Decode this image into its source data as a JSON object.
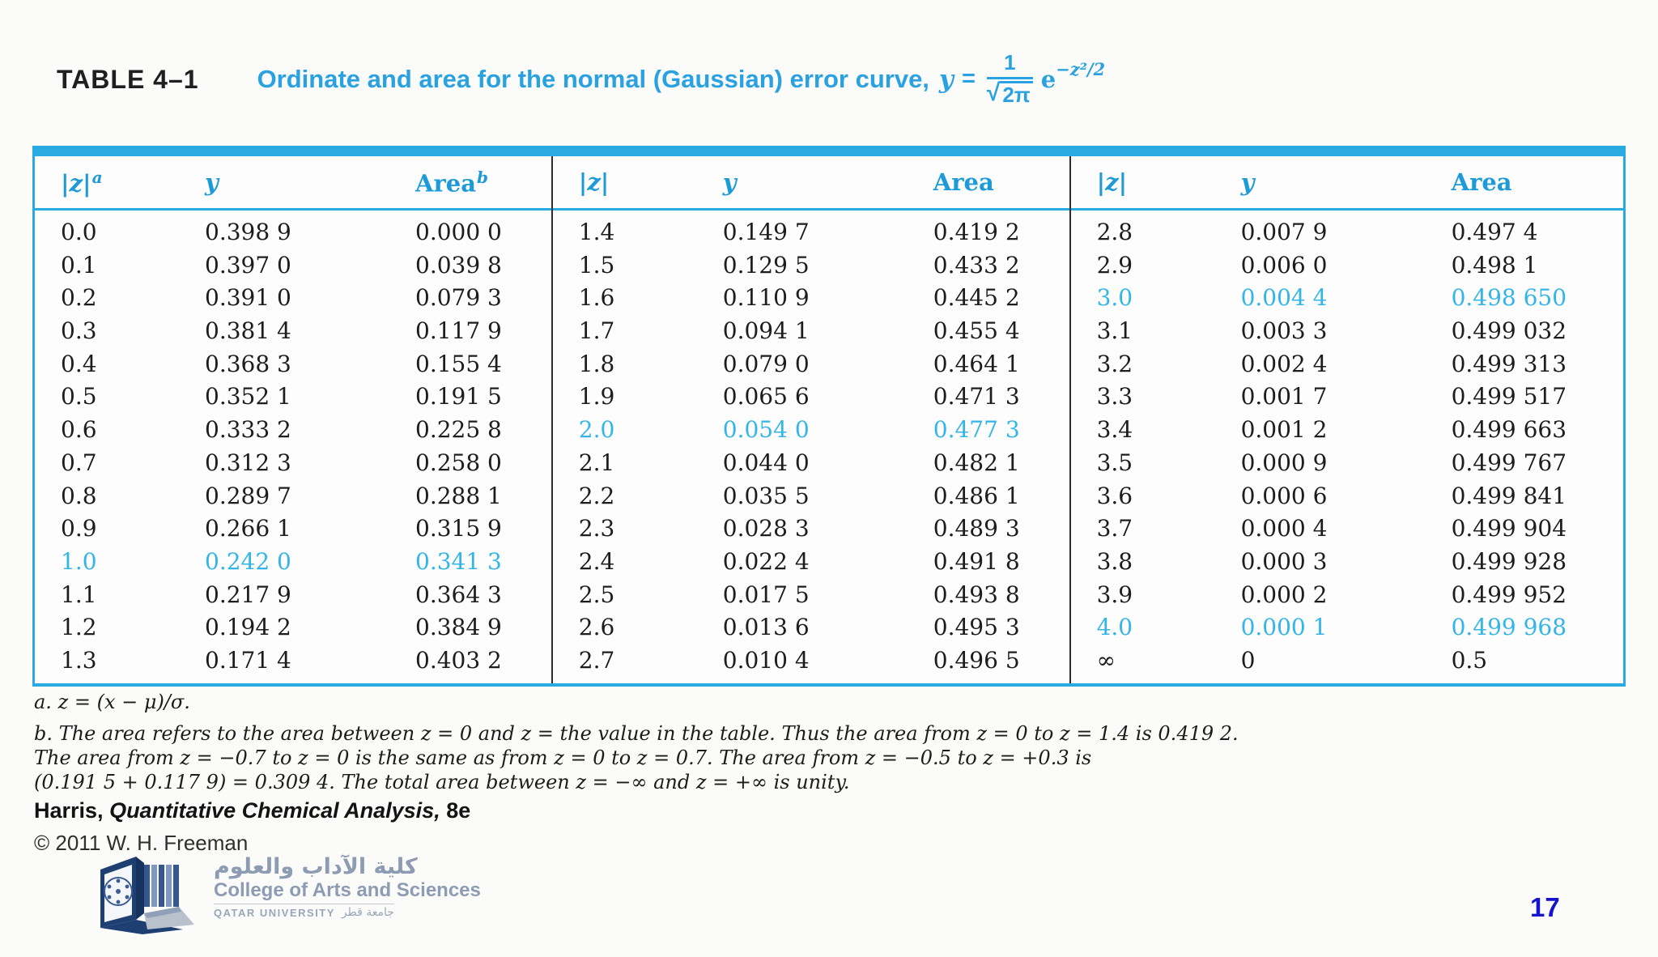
{
  "header": {
    "table_label": "TABLE 4–1",
    "title": "Ordinate and area for the normal (Gaussian) error curve,",
    "formula": {
      "lhs": "y",
      "eq": "=",
      "numerator": "1",
      "radical": "√",
      "denominator": "2π",
      "base": "e",
      "exponent": "−z²/2"
    }
  },
  "table": {
    "accent_color": "#29abe2",
    "header_text_color": "#1d9ad8",
    "highlight_text_color": "#33b5e8",
    "groups": [
      {
        "headers": [
          {
            "base": "|z|",
            "sup": "a",
            "italic": true
          },
          {
            "base": "y",
            "sup": "",
            "italic": true
          },
          {
            "base": "Area",
            "sup": "b",
            "italic": false
          }
        ],
        "rows": [
          {
            "z": "0.0",
            "y": "0.398 9",
            "area": "0.000 0",
            "h": false
          },
          {
            "z": "0.1",
            "y": "0.397 0",
            "area": "0.039 8",
            "h": false
          },
          {
            "z": "0.2",
            "y": "0.391 0",
            "area": "0.079 3",
            "h": false
          },
          {
            "z": "0.3",
            "y": "0.381 4",
            "area": "0.117 9",
            "h": false
          },
          {
            "z": "0.4",
            "y": "0.368 3",
            "area": "0.155 4",
            "h": false
          },
          {
            "z": "0.5",
            "y": "0.352 1",
            "area": "0.191 5",
            "h": false
          },
          {
            "z": "0.6",
            "y": "0.333 2",
            "area": "0.225 8",
            "h": false
          },
          {
            "z": "0.7",
            "y": "0.312 3",
            "area": "0.258 0",
            "h": false
          },
          {
            "z": "0.8",
            "y": "0.289 7",
            "area": "0.288 1",
            "h": false
          },
          {
            "z": "0.9",
            "y": "0.266 1",
            "area": "0.315 9",
            "h": false
          },
          {
            "z": "1.0",
            "y": "0.242 0",
            "area": "0.341 3",
            "h": true
          },
          {
            "z": "1.1",
            "y": "0.217 9",
            "area": "0.364 3",
            "h": false
          },
          {
            "z": "1.2",
            "y": "0.194 2",
            "area": "0.384 9",
            "h": false
          },
          {
            "z": "1.3",
            "y": "0.171 4",
            "area": "0.403 2",
            "h": false
          }
        ]
      },
      {
        "headers": [
          {
            "base": "|z|",
            "sup": "",
            "italic": true
          },
          {
            "base": "y",
            "sup": "",
            "italic": true
          },
          {
            "base": "Area",
            "sup": "",
            "italic": false
          }
        ],
        "rows": [
          {
            "z": "1.4",
            "y": "0.149 7",
            "area": "0.419 2",
            "h": false
          },
          {
            "z": "1.5",
            "y": "0.129 5",
            "area": "0.433 2",
            "h": false
          },
          {
            "z": "1.6",
            "y": "0.110 9",
            "area": "0.445 2",
            "h": false
          },
          {
            "z": "1.7",
            "y": "0.094 1",
            "area": "0.455 4",
            "h": false
          },
          {
            "z": "1.8",
            "y": "0.079 0",
            "area": "0.464 1",
            "h": false
          },
          {
            "z": "1.9",
            "y": "0.065 6",
            "area": "0.471 3",
            "h": false
          },
          {
            "z": "2.0",
            "y": "0.054 0",
            "area": "0.477 3",
            "h": true
          },
          {
            "z": "2.1",
            "y": "0.044 0",
            "area": "0.482 1",
            "h": false
          },
          {
            "z": "2.2",
            "y": "0.035 5",
            "area": "0.486 1",
            "h": false
          },
          {
            "z": "2.3",
            "y": "0.028 3",
            "area": "0.489 3",
            "h": false
          },
          {
            "z": "2.4",
            "y": "0.022 4",
            "area": "0.491 8",
            "h": false
          },
          {
            "z": "2.5",
            "y": "0.017 5",
            "area": "0.493 8",
            "h": false
          },
          {
            "z": "2.6",
            "y": "0.013 6",
            "area": "0.495 3",
            "h": false
          },
          {
            "z": "2.7",
            "y": "0.010 4",
            "area": "0.496 5",
            "h": false
          }
        ]
      },
      {
        "headers": [
          {
            "base": "|z|",
            "sup": "",
            "italic": true
          },
          {
            "base": "y",
            "sup": "",
            "italic": true
          },
          {
            "base": "Area",
            "sup": "",
            "italic": false
          }
        ],
        "rows": [
          {
            "z": "2.8",
            "y": "0.007 9",
            "area": "0.497 4",
            "h": false
          },
          {
            "z": "2.9",
            "y": "0.006 0",
            "area": "0.498 1",
            "h": false
          },
          {
            "z": "3.0",
            "y": "0.004 4",
            "area": "0.498 650",
            "h": true
          },
          {
            "z": "3.1",
            "y": "0.003 3",
            "area": "0.499 032",
            "h": false
          },
          {
            "z": "3.2",
            "y": "0.002 4",
            "area": "0.499 313",
            "h": false
          },
          {
            "z": "3.3",
            "y": "0.001 7",
            "area": "0.499 517",
            "h": false
          },
          {
            "z": "3.4",
            "y": "0.001 2",
            "area": "0.499 663",
            "h": false
          },
          {
            "z": "3.5",
            "y": "0.000 9",
            "area": "0.499 767",
            "h": false
          },
          {
            "z": "3.6",
            "y": "0.000 6",
            "area": "0.499 841",
            "h": false
          },
          {
            "z": "3.7",
            "y": "0.000 4",
            "area": "0.499 904",
            "h": false
          },
          {
            "z": "3.8",
            "y": "0.000 3",
            "area": "0.499 928",
            "h": false
          },
          {
            "z": "3.9",
            "y": "0.000 2",
            "area": "0.499 952",
            "h": false
          },
          {
            "z": "4.0",
            "y": "0.000 1",
            "area": "0.499 968",
            "h": true
          },
          {
            "z": "∞",
            "y": "0",
            "area": "0.5",
            "h": false
          }
        ]
      }
    ]
  },
  "footnotes": {
    "a": "a. z = (x − μ)/σ.",
    "b_lines": [
      "b. The area refers to the area between z = 0 and z = the value in the table. Thus the area from z = 0 to z = 1.4 is 0.419 2.",
      "The area from z = −0.7 to z = 0 is the same as from z = 0 to z = 0.7. The area from z = −0.5 to z = +0.3 is",
      "(0.191 5 + 0.117 9) = 0.309 4. The total area between z = −∞ and z = +∞ is unity."
    ]
  },
  "citation": {
    "author": "Harris, ",
    "book": "Quantitative Chemical Analysis,",
    "edition": " 8e",
    "copyright": "© 2011 W. H. Freeman"
  },
  "logo": {
    "arabic": "كلية الآداب والعلوم",
    "english": "College of Arts and Sciences",
    "sub_en": "QATAR UNIVERSITY",
    "sub_ar": "جامعة قطر"
  },
  "page": {
    "number": "17"
  }
}
